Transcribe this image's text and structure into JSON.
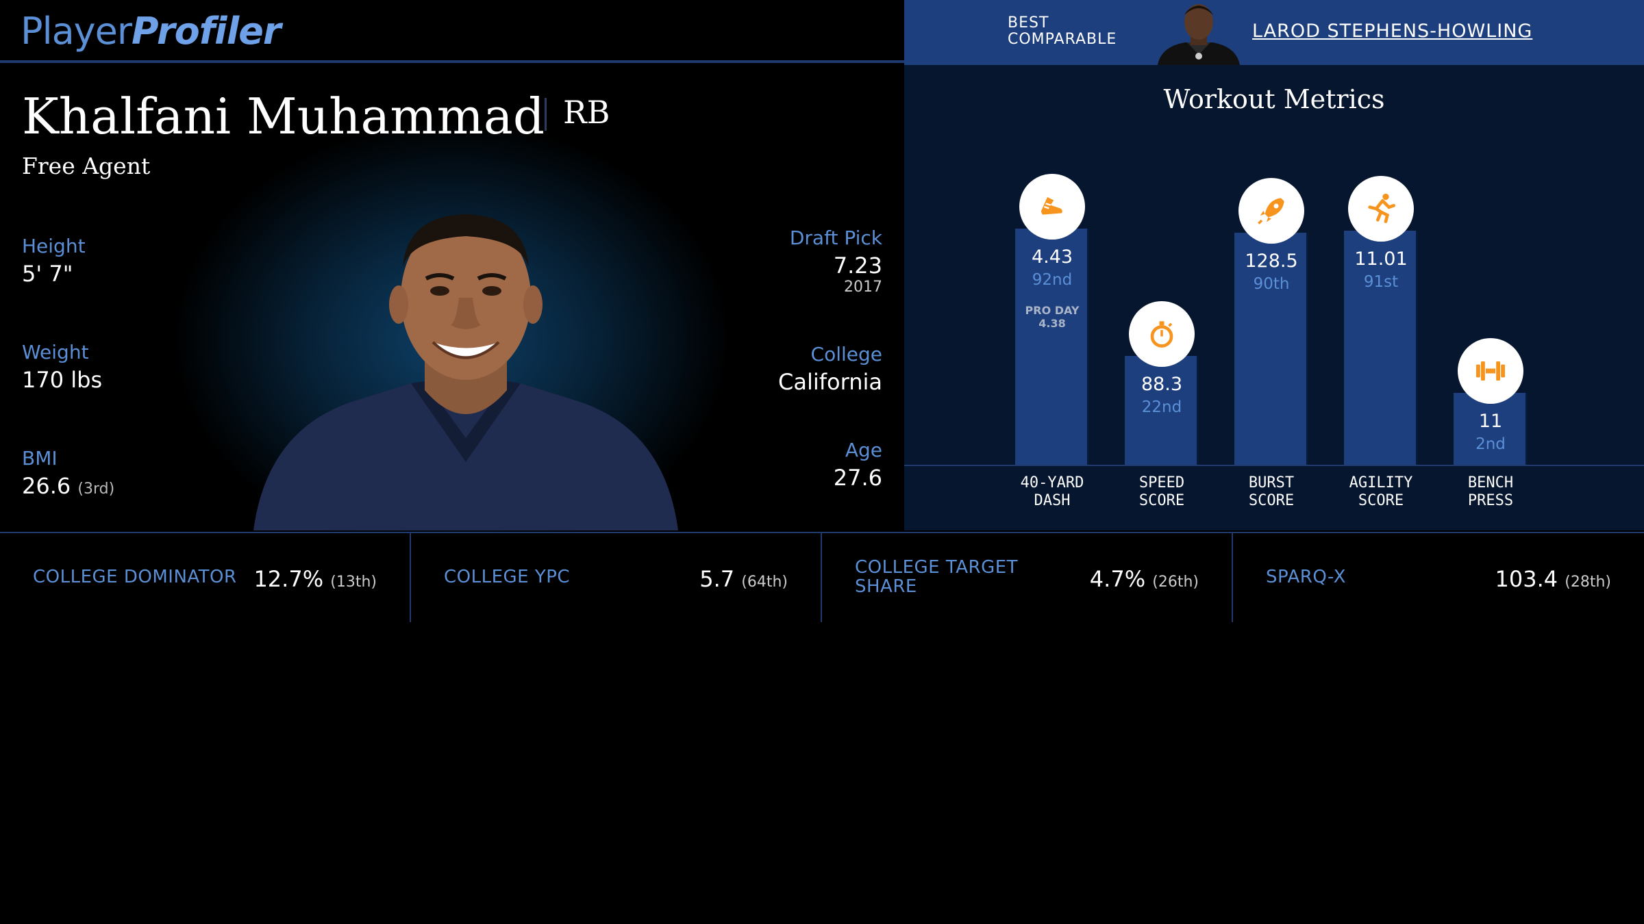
{
  "brand": {
    "part1": "Player",
    "part2": "Profiler"
  },
  "comparable": {
    "label_line1": "BEST",
    "label_line2": "COMPARABLE",
    "name": "LAROD STEPHENS-HOWLING"
  },
  "player": {
    "name": "Khalfani Muhammad",
    "position": "RB",
    "team": "Free Agent"
  },
  "bio": {
    "height_label": "Height",
    "height_value": "5' 7\"",
    "weight_label": "Weight",
    "weight_value": "170 lbs",
    "bmi_label": "BMI",
    "bmi_value": "26.6",
    "bmi_rank": "(3rd)",
    "draft_label": "Draft Pick",
    "draft_value": "7.23",
    "draft_year": "2017",
    "college_label": "College",
    "college_value": "California",
    "age_label": "Age",
    "age_value": "27.6"
  },
  "metrics": {
    "title": "Workout Metrics",
    "accent_color": "#f7941d",
    "bar_color": "#1e3f7e",
    "items": [
      {
        "name_line1": "40-YARD",
        "name_line2": "DASH",
        "value": "4.43",
        "rank": "92nd",
        "percentile": 92,
        "icon": "shoe-icon",
        "note_line1": "PRO DAY",
        "note_line2": "4.38"
      },
      {
        "name_line1": "SPEED",
        "name_line2": "SCORE",
        "value": "88.3",
        "rank": "22nd",
        "percentile": 22,
        "icon": "stopwatch-icon"
      },
      {
        "name_line1": "BURST",
        "name_line2": "SCORE",
        "value": "128.5",
        "rank": "90th",
        "percentile": 90,
        "icon": "rocket-icon"
      },
      {
        "name_line1": "AGILITY",
        "name_line2": "SCORE",
        "value": "11.01",
        "rank": "91st",
        "percentile": 91,
        "icon": "runner-icon"
      },
      {
        "name_line1": "BENCH",
        "name_line2": "PRESS",
        "value": "11",
        "rank": "2nd",
        "percentile": 2,
        "icon": "dumbbell-icon"
      }
    ]
  },
  "cards": [
    {
      "label_line1": "COLLEGE DOMINATOR",
      "label_line2": "",
      "value": "12.7%",
      "rank": "(13th)"
    },
    {
      "label_line1": "COLLEGE YPC",
      "label_line2": "",
      "value": "5.7",
      "rank": "(64th)"
    },
    {
      "label_line1": "COLLEGE TARGET",
      "label_line2": "SHARE",
      "value": "4.7%",
      "rank": "(26th)"
    },
    {
      "label_line1": "SPARQ-X",
      "label_line2": "",
      "value": "103.4",
      "rank": "(28th)"
    }
  ]
}
